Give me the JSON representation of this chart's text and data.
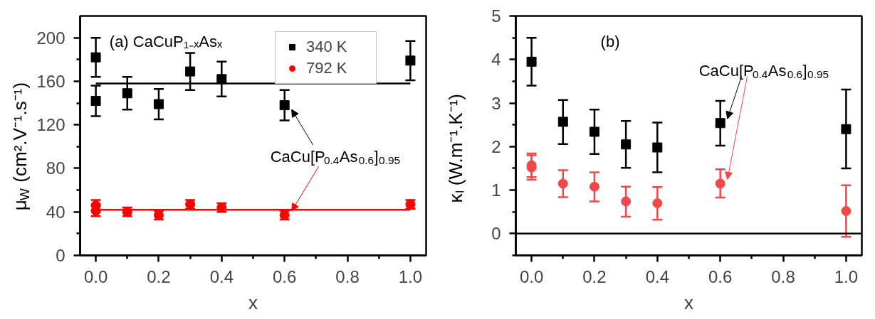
{
  "chart_data": [
    {
      "type": "scatter",
      "title": "(a) CaCuP₁₋ₓAsₓ",
      "xlabel": "x",
      "ylabel": "μ$_{W}$ (cm².V⁻¹.s⁻¹)",
      "xlim": [
        -0.05,
        1.05
      ],
      "xticks": [
        {
          "value": 0,
          "label": "0.0"
        },
        {
          "value": 0.1,
          "label": null
        },
        {
          "value": 0.2,
          "label": "0.2"
        },
        {
          "value": 0.3,
          "label": null
        },
        {
          "value": 0.4,
          "label": "0.4"
        },
        {
          "value": 0.5,
          "label": null
        },
        {
          "value": 0.6,
          "label": "0.6"
        },
        {
          "value": 0.7,
          "label": null
        },
        {
          "value": 0.8,
          "label": "0.8"
        },
        {
          "value": 0.9,
          "label": null
        },
        {
          "value": 1,
          "label": "1.0"
        }
      ],
      "ylim": [
        0,
        220
      ],
      "yticks": [
        0,
        {
          "value": 20,
          "label": null
        },
        40,
        {
          "value": 60,
          "label": null
        },
        80,
        {
          "value": 100,
          "label": null
        },
        120,
        {
          "value": 140,
          "label": null
        },
        160,
        {
          "value": 180,
          "label": null
        },
        200
      ],
      "legend": "top right",
      "series": [
        {
          "name": "340 K",
          "color": "#000000",
          "marker": "square",
          "x": [
            0,
            0,
            0.1,
            0.2,
            0.3,
            0.4,
            0.6,
            1.0
          ],
          "values": [
            182,
            142,
            149,
            139,
            169,
            162,
            138,
            179
          ],
          "errors": [
            18,
            14,
            15,
            14,
            17,
            16,
            14,
            18
          ]
        },
        {
          "name": "792 K",
          "color": "#ff0000",
          "marker": "circle",
          "x": [
            0,
            0,
            0.1,
            0.2,
            0.3,
            0.4,
            0.6,
            1.0
          ],
          "values": [
            46,
            41,
            40,
            37,
            47,
            44,
            37,
            47
          ],
          "errors": [
            5,
            5,
            4,
            4,
            4,
            4,
            4,
            4
          ]
        },
        {
          "type": "line",
          "color": "#000000",
          "marker": "none",
          "x": [
            0,
            1.0
          ],
          "values": [
            158,
            158
          ]
        },
        {
          "type": "line",
          "color": "#ff0000",
          "marker": "none",
          "x": [
            0,
            1.0
          ],
          "values": [
            42,
            42
          ]
        }
      ],
      "annotations": [
        {
          "text": "CaCu[P$_{0.4}$As$_{0.6}$]$_{0.95}$",
          "x": 0.6,
          "y": 138
        }
      ]
    },
    {
      "type": "scatter",
      "title": "(b)",
      "xlabel": "x",
      "ylabel": "κₗ (W.m⁻¹.K⁻¹)",
      "xlim": [
        -0.05,
        1.05
      ],
      "xticks": [
        {
          "value": 0,
          "label": "0.0"
        },
        {
          "value": 0.1,
          "label": null
        },
        {
          "value": 0.2,
          "label": "0.2"
        },
        {
          "value": 0.3,
          "label": null
        },
        {
          "value": 0.4,
          "label": "0.4"
        },
        {
          "value": 0.5,
          "label": null
        },
        {
          "value": 0.6,
          "label": "0.6"
        },
        {
          "value": 0.7,
          "label": null
        },
        {
          "value": 0.8,
          "label": "0.8"
        },
        {
          "value": 0.9,
          "label": null
        },
        {
          "value": 1,
          "label": "1.0"
        }
      ],
      "ylim": [
        -0.5,
        5
      ],
      "yticks": [
        {
          "value": -0.5,
          "label": null
        },
        0,
        {
          "value": 0.5,
          "label": null
        },
        1,
        {
          "value": 1.5,
          "label": null
        },
        2,
        {
          "value": 2.5,
          "label": null
        },
        3,
        {
          "value": 3.5,
          "label": null
        },
        4,
        {
          "value": 4.5,
          "label": null
        },
        5
      ],
      "ref_lines": [
        {
          "axis": "y",
          "value": 0,
          "color": "#000000"
        }
      ],
      "series": [
        {
          "color": "#000000",
          "marker": "square",
          "x": [
            0,
            0.1,
            0.2,
            0.3,
            0.4,
            0.6,
            1.0
          ],
          "values": [
            3.95,
            2.57,
            2.34,
            2.05,
            1.98,
            2.54,
            2.4
          ],
          "errors": [
            [
              3.4,
              4.5
            ],
            [
              2.06,
              3.07
            ],
            [
              1.83,
              2.85
            ],
            [
              1.51,
              2.59
            ],
            [
              1.41,
              2.55
            ],
            [
              2.02,
              3.05
            ],
            [
              1.5,
              3.31
            ]
          ]
        },
        {
          "color": "#f04848",
          "marker": "circle",
          "x": [
            0,
            0,
            0.1,
            0.2,
            0.3,
            0.4,
            0.6,
            1.0
          ],
          "values": [
            1.57,
            1.52,
            1.15,
            1.08,
            0.74,
            0.7,
            1.15,
            0.52
          ],
          "errors": [
            [
              1.3,
              1.84
            ],
            [
              1.24,
              1.8
            ],
            [
              0.84,
              1.46
            ],
            [
              0.74,
              1.41
            ],
            [
              0.39,
              1.08
            ],
            [
              0.32,
              1.07
            ],
            [
              0.83,
              1.48
            ],
            [
              -0.07,
              1.11
            ]
          ]
        }
      ],
      "annotations": [
        {
          "text": "CaCu[P$_{0.4}$As$_{0.6}$]$_{0.95}$",
          "x": 0.6,
          "y": 2.54
        }
      ]
    }
  ]
}
